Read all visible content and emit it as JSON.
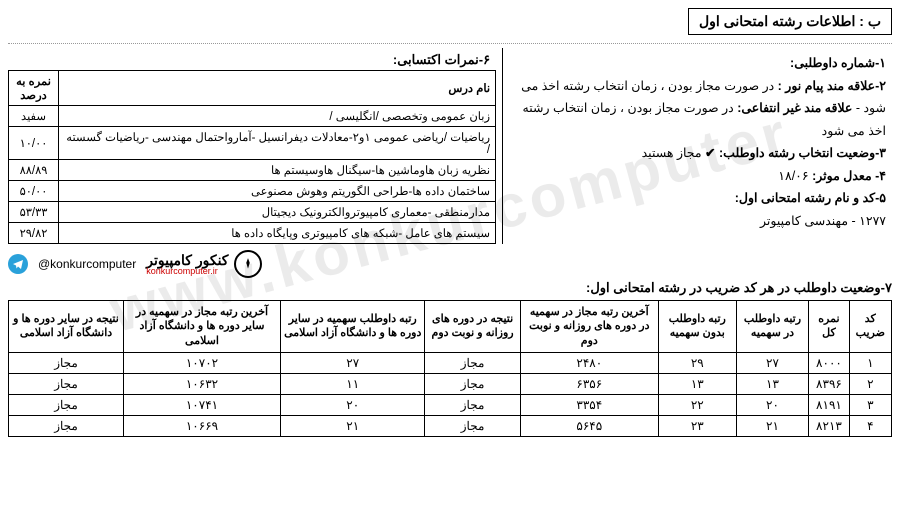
{
  "watermark": "www.konkurcomputer",
  "section_title": "ب : اطلاعات رشته امتحانی اول",
  "info": {
    "item1_label": "۱-شماره داوطلبی:",
    "item2_label": "۲-علاقه مند پیام نور :",
    "item2_text": "در صورت مجاز بودن ، زمان انتخاب رشته اخذ می شود -",
    "item2_label2": "علاقه مند غیر انتفاعی:",
    "item2_text2": "در صورت مجاز بودن ، زمان انتخاب رشته اخذ می شود",
    "item3_label": "۳-وضعیت انتخاب رشته داوطلب:",
    "item3_value": "مجاز هستید",
    "item4_label": "۴- معدل موثر:",
    "item4_value": "۱۸/۰۶",
    "item5_label": "۵-کد و نام رشته امتحانی اول:",
    "item5_value": "۱۲۷۷ - مهندسی کامپیوتر"
  },
  "scores": {
    "title": "۶-نمرات اکتسابی:",
    "columns": [
      "نام درس",
      "نمره به درصد"
    ],
    "rows": [
      {
        "course": "زبان عمومی وتخصصی /انگلیسی /",
        "score": "سفید"
      },
      {
        "course": "ریاضیات /ریاضی عمومی ۱و۲-معادلات دیفرانسیل -آمارواحتمال مهندسی -ریاضیات گسسته /",
        "score": "۱۰/۰۰"
      },
      {
        "course": "نظریه زبان هاوماشین ها-سیگنال هاوسیستم ها",
        "score": "۸۸/۸۹"
      },
      {
        "course": "ساختمان داده ها-طراحی الگوریتم وهوش مصنوعی",
        "score": "۵۰/۰۰"
      },
      {
        "course": "مدارمنطقی -معماری کامپیوتروالکترونیک دیجیتال",
        "score": "۵۳/۳۳"
      },
      {
        "course": "سیستم های عامل -شبکه های کامپیوتری وپایگاه داده ها",
        "score": "۲۹/۸۲"
      }
    ]
  },
  "brand": {
    "handle": "@konkurcomputer",
    "fa": "کنکور کامپیوتر",
    "en": "konkurcomputer.ir"
  },
  "status": {
    "title": "۷-وضعیت داوطلب در هر کد ضریب در رشته امتحانی اول:",
    "columns": [
      "کد ضریب",
      "نمره کل",
      "رتبه داوطلب در سهمیه",
      "رتبه داوطلب بدون سهمیه",
      "آخرین رتبه مجاز در سهمیه در دوره های روزانه و نوبت دوم",
      "نتیجه در دوره های روزانه و نوبت دوم",
      "رتبه داوطلب سهمیه در سایر دوره ها و دانشگاه آزاد اسلامی",
      "آخرین رتبه مجاز در سهمیه در سایر دوره ها و دانشگاه آزاد اسلامی",
      "نتیجه در سایر دوره ها و دانشگاه آزاد اسلامی"
    ],
    "rows": [
      {
        "c0": "۱",
        "c1": "۸۰۰۰",
        "c2": "۲۷",
        "c3": "۲۹",
        "c4": "۲۴۸۰",
        "c5": "مجاز",
        "c6": "۲۷",
        "c7": "۱۰۷۰۲",
        "c8": "مجاز"
      },
      {
        "c0": "۲",
        "c1": "۸۳۹۶",
        "c2": "۱۳",
        "c3": "۱۳",
        "c4": "۶۳۵۶",
        "c5": "مجاز",
        "c6": "۱۱",
        "c7": "۱۰۶۳۲",
        "c8": "مجاز"
      },
      {
        "c0": "۳",
        "c1": "۸۱۹۱",
        "c2": "۲۰",
        "c3": "۲۲",
        "c4": "۳۳۵۴",
        "c5": "مجاز",
        "c6": "۲۰",
        "c7": "۱۰۷۴۱",
        "c8": "مجاز"
      },
      {
        "c0": "۴",
        "c1": "۸۲۱۳",
        "c2": "۲۱",
        "c3": "۲۳",
        "c4": "۵۶۴۵",
        "c5": "مجاز",
        "c6": "۲۱",
        "c7": "۱۰۶۶۹",
        "c8": "مجاز"
      }
    ]
  }
}
